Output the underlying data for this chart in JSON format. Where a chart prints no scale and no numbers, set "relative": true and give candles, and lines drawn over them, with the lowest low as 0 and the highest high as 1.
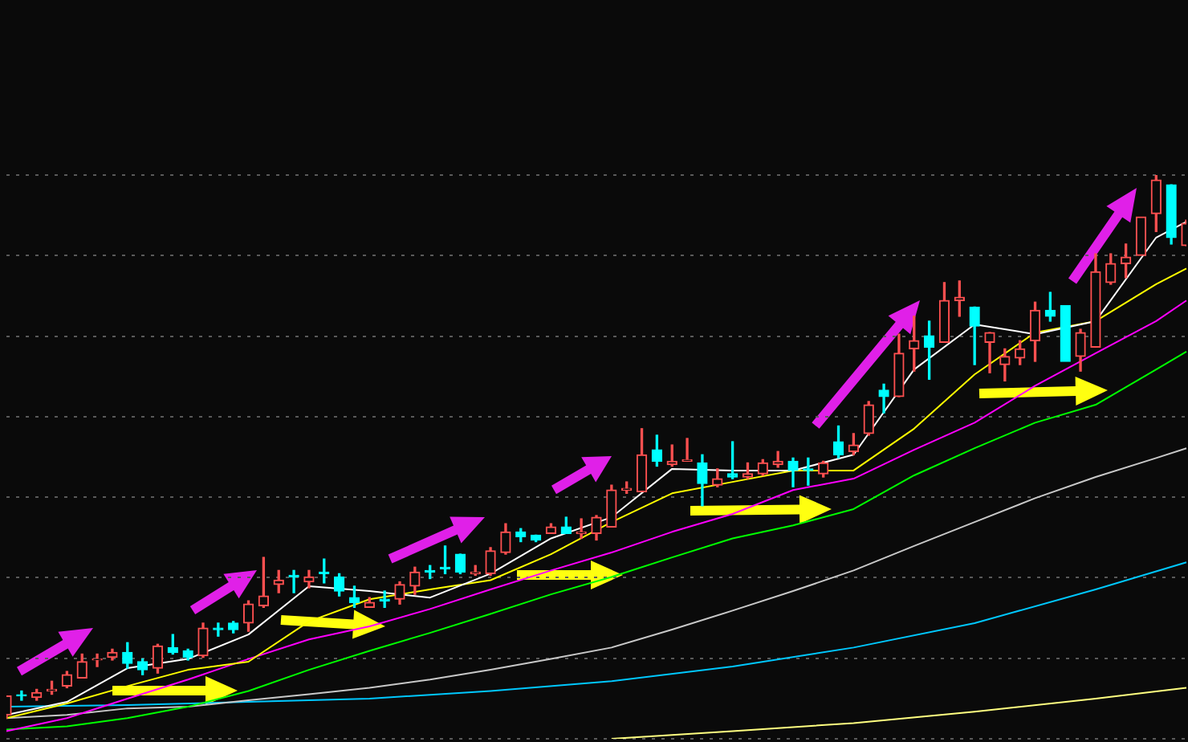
{
  "chart_data": {
    "type": "candlestick",
    "relative": true,
    "grid": "y",
    "categories": [
      null,
      null,
      null,
      null,
      null,
      null,
      null,
      null,
      null,
      null,
      null,
      null,
      null,
      null,
      null,
      null,
      null,
      null,
      null,
      null,
      null,
      null,
      null,
      null,
      null,
      null,
      null,
      null,
      null,
      null,
      null,
      null,
      null,
      null,
      null,
      null,
      null,
      null,
      null,
      null,
      null,
      null,
      null,
      null,
      null,
      null,
      null,
      null,
      null,
      null,
      null,
      null,
      null,
      null,
      null,
      null,
      null,
      null,
      null,
      null,
      null,
      null,
      null,
      null,
      null,
      null,
      null,
      null,
      null,
      null,
      null,
      null,
      null,
      null,
      null,
      null,
      null,
      null,
      null
    ],
    "ohlc": [
      [
        0.006,
        0.041,
        0,
        0.041
      ],
      [
        0.041,
        0.05,
        0.033,
        0.041
      ],
      [
        0.038,
        0.053,
        0.033,
        0.047
      ],
      [
        0.05,
        0.068,
        0.044,
        0.053
      ],
      [
        0.059,
        0.086,
        0.056,
        0.08
      ],
      [
        0.074,
        0.118,
        0.074,
        0.104
      ],
      [
        0.107,
        0.118,
        0.095,
        0.109
      ],
      [
        0.112,
        0.127,
        0.107,
        0.121
      ],
      [
        0.121,
        0.139,
        0.092,
        0.101
      ],
      [
        0.104,
        0.109,
        0.08,
        0.089
      ],
      [
        0.092,
        0.136,
        0.083,
        0.133
      ],
      [
        0.13,
        0.154,
        0.118,
        0.121
      ],
      [
        0.124,
        0.127,
        0.107,
        0.112
      ],
      [
        0.115,
        0.175,
        0.112,
        0.166
      ],
      [
        0.166,
        0.175,
        0.151,
        0.163
      ],
      [
        0.175,
        0.178,
        0.157,
        0.163
      ],
      [
        0.175,
        0.216,
        0.16,
        0.21
      ],
      [
        0.207,
        0.296,
        0.204,
        0.225
      ],
      [
        0.246,
        0.272,
        0.231,
        0.254
      ],
      [
        0.263,
        0.272,
        0.231,
        0.26
      ],
      [
        0.251,
        0.272,
        0.24,
        0.26
      ],
      [
        0.269,
        0.293,
        0.249,
        0.266
      ],
      [
        0.26,
        0.266,
        0.225,
        0.234
      ],
      [
        0.222,
        0.243,
        0.204,
        0.213
      ],
      [
        0.204,
        0.222,
        0.204,
        0.213
      ],
      [
        0.219,
        0.234,
        0.204,
        0.216
      ],
      [
        0.219,
        0.251,
        0.21,
        0.246
      ],
      [
        0.243,
        0.278,
        0.228,
        0.269
      ],
      [
        0.272,
        0.281,
        0.257,
        0.269
      ],
      [
        0.278,
        0.317,
        0.266,
        0.275
      ],
      [
        0.302,
        0.302,
        0.266,
        0.269
      ],
      [
        0.266,
        0.281,
        0.263,
        0.269
      ],
      [
        0.266,
        0.314,
        0.263,
        0.308
      ],
      [
        0.305,
        0.358,
        0.302,
        0.343
      ],
      [
        0.343,
        0.349,
        0.325,
        0.334
      ],
      [
        0.337,
        0.337,
        0.325,
        0.328
      ],
      [
        0.34,
        0.358,
        0.34,
        0.352
      ],
      [
        0.352,
        0.37,
        0.34,
        0.34
      ],
      [
        0.34,
        0.367,
        0.331,
        0.343
      ],
      [
        0.34,
        0.373,
        0.328,
        0.37
      ],
      [
        0.352,
        0.429,
        0.352,
        0.42
      ],
      [
        0.42,
        0.435,
        0.414,
        0.423
      ],
      [
        0.417,
        0.533,
        0.417,
        0.485
      ],
      [
        0.494,
        0.521,
        0.464,
        0.473
      ],
      [
        0.467,
        0.503,
        0.464,
        0.473
      ],
      [
        0.473,
        0.515,
        0.473,
        0.476
      ],
      [
        0.47,
        0.485,
        0.391,
        0.432
      ],
      [
        0.429,
        0.459,
        0.426,
        0.441
      ],
      [
        0.45,
        0.509,
        0.441,
        0.444
      ],
      [
        0.444,
        0.47,
        0.441,
        0.45
      ],
      [
        0.45,
        0.476,
        0.447,
        0.47
      ],
      [
        0.467,
        0.491,
        0.462,
        0.473
      ],
      [
        0.473,
        0.479,
        0.426,
        0.456
      ],
      [
        0.459,
        0.479,
        0.429,
        0.456
      ],
      [
        0.45,
        0.473,
        0.444,
        0.47
      ],
      [
        0.509,
        0.538,
        0.479,
        0.485
      ],
      [
        0.491,
        0.524,
        0.485,
        0.503
      ],
      [
        0.524,
        0.583,
        0.521,
        0.577
      ],
      [
        0.604,
        0.615,
        0.562,
        0.592
      ],
      [
        0.592,
        0.707,
        0.592,
        0.672
      ],
      [
        0.68,
        0.74,
        0.639,
        0.695
      ],
      [
        0.704,
        0.731,
        0.624,
        0.683
      ],
      [
        0.692,
        0.802,
        0.692,
        0.769
      ],
      [
        0.769,
        0.805,
        0.74,
        0.775
      ],
      [
        0.757,
        0.757,
        0.651,
        0.722
      ],
      [
        0.692,
        0.71,
        0.636,
        0.71
      ],
      [
        0.651,
        0.68,
        0.621,
        0.666
      ],
      [
        0.663,
        0.695,
        0.651,
        0.68
      ],
      [
        0.695,
        0.766,
        0.657,
        0.751
      ],
      [
        0.751,
        0.784,
        0.731,
        0.74
      ],
      [
        0.76,
        0.76,
        0.657,
        0.657
      ],
      [
        0.666,
        0.716,
        0.639,
        0.71
      ],
      [
        0.683,
        0.855,
        0.683,
        0.822
      ],
      [
        0.802,
        0.855,
        0.799,
        0.837
      ],
      [
        0.837,
        0.873,
        0.811,
        0.849
      ],
      [
        0.852,
        0.923,
        0.852,
        0.923
      ],
      [
        0.929,
        1,
        0.896,
        0.991
      ],
      [
        0.982,
        0.982,
        0.873,
        0.885
      ],
      [
        0.87,
        0.917,
        0.87,
        0.911
      ]
    ],
    "colors": [
      "#ff5050",
      "#00ffff",
      "#ff5050",
      "#ff5050",
      "#ff5050",
      "#ff5050",
      "#ff5050",
      "#ff5050",
      "#00ffff",
      "#00ffff",
      "#ff5050",
      "#00ffff",
      "#00ffff",
      "#ff5050",
      "#00ffff",
      "#00ffff",
      "#ff5050",
      "#ff5050",
      "#ff5050",
      "#00ffff",
      "#ff5050",
      "#00ffff",
      "#00ffff",
      "#00ffff",
      "#ff5050",
      "#00ffff",
      "#ff5050",
      "#ff5050",
      "#00ffff",
      "#00ffff",
      "#00ffff",
      "#ff5050",
      "#ff5050",
      "#ff5050",
      "#00ffff",
      "#00ffff",
      "#ff5050",
      "#00ffff",
      "#ff5050",
      "#ff5050",
      "#ff5050",
      "#ff5050",
      "#ff5050",
      "#00ffff",
      "#ff5050",
      "#ff5050",
      "#00ffff",
      "#ff5050",
      "#00ffff",
      "#ff5050",
      "#ff5050",
      "#ff5050",
      "#00ffff",
      "#00ffff",
      "#ff5050",
      "#00ffff",
      "#ff5050",
      "#ff5050",
      "#00ffff",
      "#ff5050",
      "#ff5050",
      "#00ffff",
      "#ff5050",
      "#ff5050",
      "#00ffff",
      "#ff5050",
      "#ff5050",
      "#ff5050",
      "#ff5050",
      "#00ffff",
      "#00ffff",
      "#ff5050",
      "#ff5050",
      "#ff5050",
      "#ff5050",
      "#ff5050",
      "#ff5050",
      "#00ffff",
      "#ff5050"
    ],
    "series": [
      {
        "type": "line",
        "color": "#ffffff",
        "values": [
          0.006,
          null,
          null,
          null,
          0.03,
          null,
          null,
          null,
          0.092,
          null,
          null,
          null,
          0.109,
          null,
          null,
          null,
          0.154,
          null,
          null,
          null,
          0.243,
          null,
          null,
          null,
          0.234,
          null,
          null,
          null,
          0.222,
          null,
          null,
          null,
          0.266,
          null,
          null,
          null,
          0.331,
          null,
          null,
          null,
          0.37,
          null,
          null,
          null,
          0.459,
          null,
          null,
          null,
          0.456,
          null,
          null,
          null,
          0.456,
          null,
          null,
          null,
          0.485,
          null,
          null,
          null,
          0.642,
          null,
          null,
          null,
          0.725,
          null,
          null,
          null,
          0.707,
          null,
          null,
          null,
          0.731,
          null,
          null,
          null,
          0.885,
          null,
          0.914
        ]
      },
      {
        "type": "line",
        "color": "#ffff00",
        "values": [
          0,
          null,
          null,
          null,
          0.027,
          null,
          null,
          null,
          0.059,
          null,
          null,
          null,
          0.089,
          null,
          null,
          null,
          0.104,
          null,
          null,
          null,
          0.178,
          null,
          null,
          null,
          0.219,
          null,
          null,
          null,
          0.237,
          null,
          null,
          null,
          0.254,
          null,
          null,
          null,
          0.302,
          null,
          null,
          null,
          0.361,
          null,
          null,
          null,
          0.414,
          null,
          null,
          null,
          0.435,
          null,
          null,
          null,
          0.456,
          null,
          null,
          null,
          0.456,
          null,
          null,
          null,
          0.533,
          null,
          null,
          null,
          0.633,
          null,
          null,
          null,
          0.71,
          null,
          null,
          null,
          0.731,
          null,
          null,
          null,
          0.799,
          null,
          0.828
        ]
      },
      {
        "type": "line",
        "color": "#ff00ff",
        "values": [
          -0.024,
          null,
          null,
          null,
          0,
          null,
          null,
          null,
          0.036,
          null,
          null,
          null,
          0.071,
          null,
          null,
          null,
          0.109,
          null,
          null,
          null,
          0.145,
          null,
          null,
          null,
          0.169,
          null,
          null,
          null,
          0.201,
          null,
          null,
          null,
          0.237,
          null,
          null,
          null,
          0.272,
          null,
          null,
          null,
          0.305,
          null,
          null,
          null,
          0.343,
          null,
          null,
          null,
          0.376,
          null,
          null,
          null,
          0.42,
          null,
          null,
          null,
          0.441,
          null,
          null,
          null,
          0.494,
          null,
          null,
          null,
          0.544,
          null,
          null,
          null,
          0.612,
          null,
          null,
          null,
          0.672,
          null,
          null,
          null,
          0.731,
          null,
          0.769
        ]
      },
      {
        "type": "line",
        "color": "#00ff00",
        "values": [
          -0.021,
          null,
          null,
          null,
          -0.015,
          null,
          null,
          null,
          0,
          null,
          null,
          null,
          0.021,
          null,
          null,
          null,
          0.05,
          null,
          null,
          null,
          0.089,
          null,
          null,
          null,
          0.124,
          null,
          null,
          null,
          0.157,
          null,
          null,
          null,
          0.192,
          null,
          null,
          null,
          0.228,
          null,
          null,
          null,
          0.26,
          null,
          null,
          null,
          0.296,
          null,
          null,
          null,
          0.331,
          null,
          null,
          null,
          0.355,
          null,
          null,
          null,
          0.385,
          null,
          null,
          null,
          0.447,
          null,
          null,
          null,
          0.497,
          null,
          null,
          null,
          0.544,
          null,
          null,
          null,
          0.577,
          null,
          null,
          null,
          0.642,
          null,
          0.675
        ]
      },
      {
        "type": "line",
        "color": "#c8c8c8",
        "values": [
          0,
          null,
          null,
          null,
          0.006,
          null,
          null,
          null,
          0.018,
          null,
          null,
          null,
          0.021,
          null,
          null,
          null,
          0.033,
          null,
          null,
          null,
          0.044,
          null,
          null,
          null,
          0.056,
          null,
          null,
          null,
          0.071,
          null,
          null,
          null,
          0.089,
          null,
          null,
          null,
          0.109,
          null,
          null,
          null,
          0.13,
          null,
          null,
          null,
          0.163,
          null,
          null,
          null,
          0.198,
          null,
          null,
          null,
          0.234,
          null,
          null,
          null,
          0.272,
          null,
          null,
          null,
          0.317,
          null,
          null,
          null,
          0.361,
          null,
          null,
          null,
          0.405,
          null,
          null,
          null,
          0.444,
          null,
          null,
          null,
          0.479,
          null,
          0.497
        ]
      },
      {
        "type": "line",
        "color": "#00c8ff",
        "values": [
          0.021,
          null,
          null,
          null,
          null,
          null,
          null,
          null,
          0.024,
          null,
          null,
          null,
          null,
          null,
          null,
          null,
          0.03,
          null,
          null,
          null,
          null,
          null,
          null,
          null,
          0.036,
          null,
          null,
          null,
          null,
          null,
          null,
          null,
          0.05,
          null,
          null,
          null,
          null,
          null,
          null,
          null,
          0.068,
          null,
          null,
          null,
          null,
          null,
          null,
          null,
          0.095,
          null,
          null,
          null,
          null,
          null,
          null,
          null,
          0.13,
          null,
          null,
          null,
          null,
          null,
          null,
          null,
          0.175,
          null,
          null,
          null,
          null,
          null,
          null,
          null,
          0.237,
          null,
          null,
          null,
          null,
          null,
          0.287
        ]
      },
      {
        "type": "line",
        "color": "#ffff80",
        "values": [
          null,
          null,
          null,
          null,
          null,
          null,
          null,
          null,
          null,
          null,
          null,
          null,
          null,
          null,
          null,
          null,
          null,
          null,
          null,
          null,
          null,
          null,
          null,
          null,
          null,
          null,
          null,
          null,
          null,
          null,
          null,
          null,
          null,
          null,
          null,
          null,
          null,
          null,
          null,
          null,
          -0.038,
          null,
          null,
          null,
          null,
          null,
          null,
          null,
          -0.024,
          null,
          null,
          null,
          null,
          null,
          null,
          null,
          -0.009,
          null,
          null,
          null,
          null,
          null,
          null,
          null,
          0.012,
          null,
          null,
          null,
          null,
          null,
          null,
          null,
          0.036,
          null,
          null,
          null,
          null,
          null,
          0.056
        ]
      }
    ]
  }
}
